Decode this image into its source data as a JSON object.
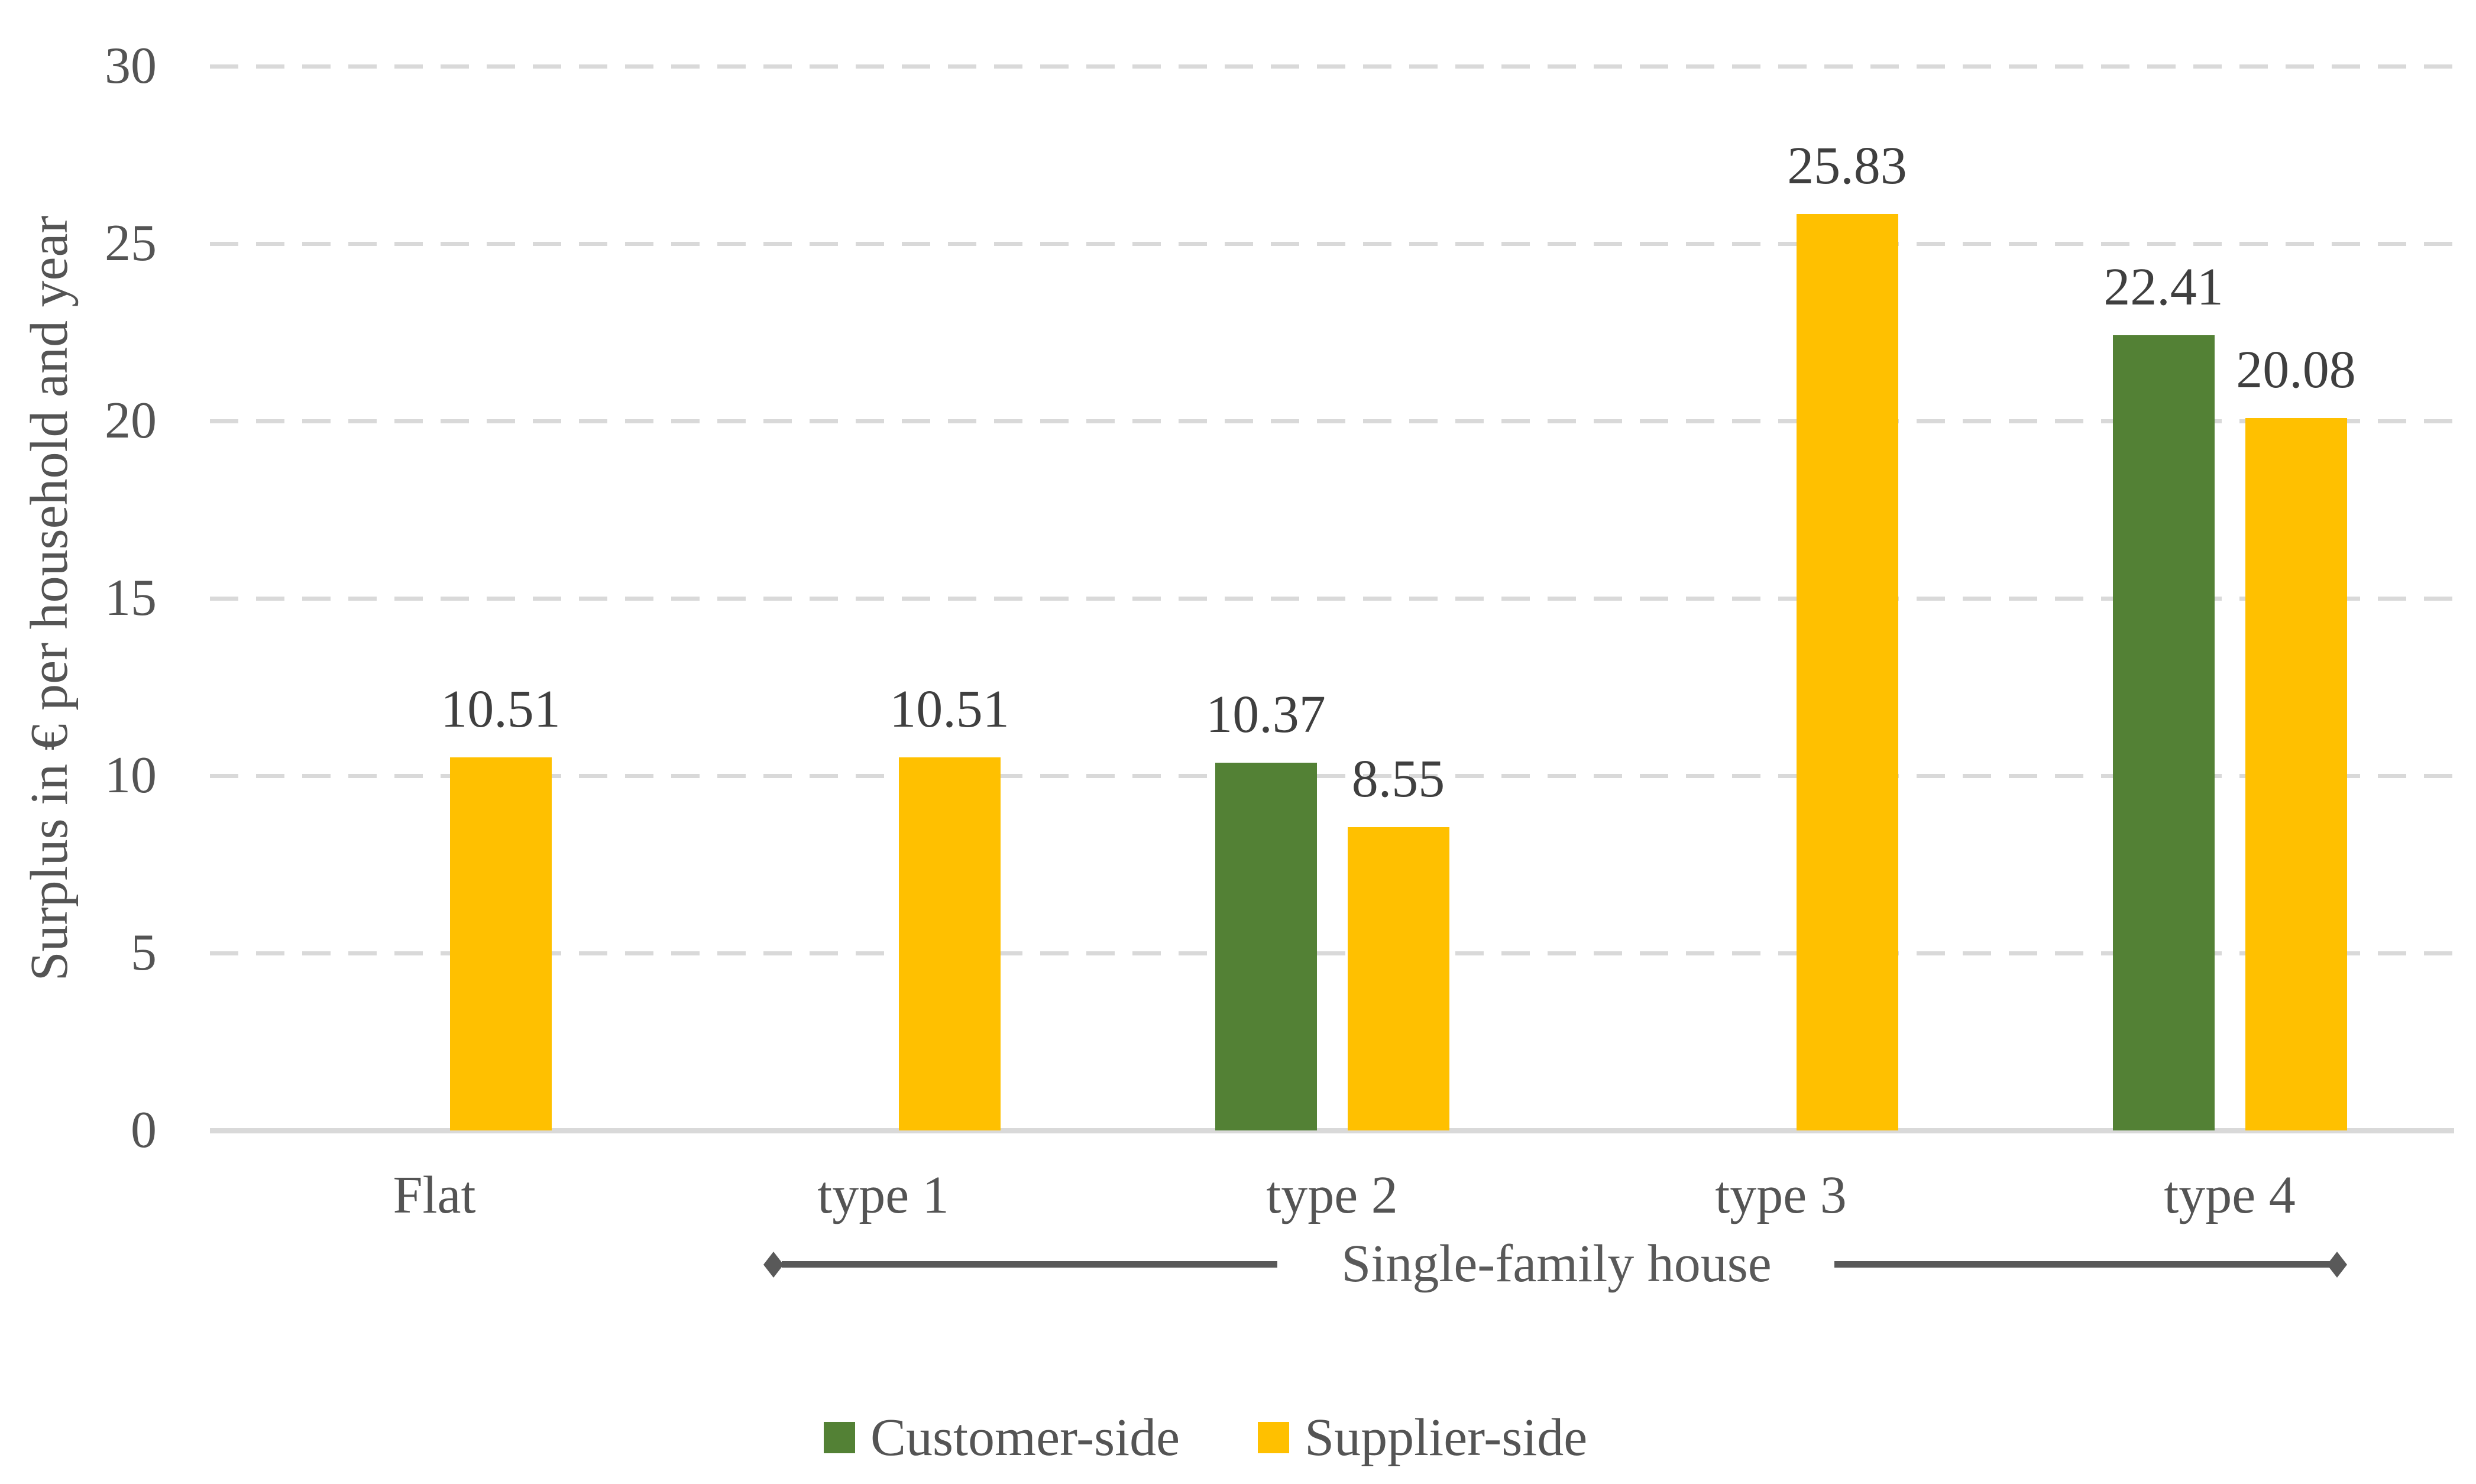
{
  "chart_data": {
    "type": "bar",
    "title": "",
    "xlabel": "",
    "ylabel": "Surplus in € per household and year",
    "ylim": [
      0,
      30
    ],
    "yticks": [
      0,
      5,
      10,
      15,
      20,
      25,
      30
    ],
    "grid": "horizontal dashed gridlines",
    "legend_position": "bottom",
    "categories": [
      "Flat",
      "type 1",
      "type 2",
      "type 3",
      "type 4"
    ],
    "series": [
      {
        "name": "Customer-side",
        "color": "#538135",
        "values": [
          null,
          null,
          10.37,
          null,
          22.41
        ],
        "labels": [
          null,
          null,
          "10.37",
          null,
          "22.41"
        ]
      },
      {
        "name": "Supplier-side",
        "color": "#FFC000",
        "values": [
          10.51,
          10.51,
          8.55,
          25.83,
          20.08
        ],
        "labels": [
          "10.51",
          "10.51",
          "8.55",
          "25.83",
          "20.08"
        ]
      }
    ],
    "annotation": {
      "text": "Single-family house",
      "style": "horizontal line with diamond arrowheads spanning type 1 through type 4"
    }
  },
  "colors": {
    "customer_side": "#538135",
    "supplier_side": "#FFC000",
    "gridline": "#D9D9D9",
    "axis_line": "#D9D9D9",
    "axis_text": "#545454",
    "data_label_text": "#3F3F3F",
    "annotation": "#595959",
    "background": "#FFFFFF"
  }
}
